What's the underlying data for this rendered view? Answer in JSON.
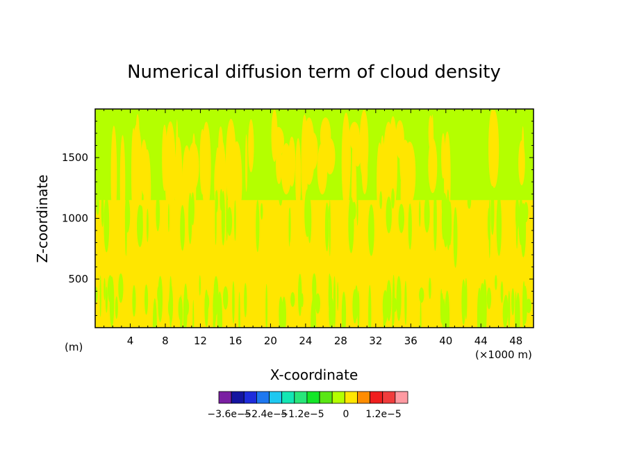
{
  "chart_data": {
    "type": "heatmap",
    "title": "Numerical diffusion term of cloud density",
    "xlabel": "X-coordinate",
    "ylabel": "Z-coordinate",
    "x_unit_label": "(×1000 m)",
    "y_unit_label": "(m)",
    "xlim": [
      0,
      50
    ],
    "ylim": [
      100,
      1900
    ],
    "x_ticks": [
      4,
      8,
      12,
      16,
      20,
      24,
      28,
      32,
      36,
      40,
      44,
      48
    ],
    "y_ticks": [
      500,
      1000,
      1500
    ],
    "x_tick_labels": [
      "4",
      "8",
      "12",
      "16",
      "20",
      "24",
      "28",
      "32",
      "36",
      "40",
      "44",
      "48"
    ],
    "y_tick_labels": [
      "500",
      "1000",
      "1500"
    ],
    "colorbar": {
      "colors": [
        "#7a1fa2",
        "#1414a0",
        "#1e2cdc",
        "#1e78f0",
        "#1ec8f0",
        "#14e6b4",
        "#28e67a",
        "#14e628",
        "#5ae614",
        "#b4ff00",
        "#ffe600",
        "#ff8c00",
        "#f01e1e",
        "#f03c3c",
        "#ff9aa2"
      ],
      "tick_labels": [
        "−3.6e−5",
        "−2.4e−5",
        "−1.2e−5",
        "0",
        "1.2e−5"
      ]
    },
    "field_colors": {
      "background": "#ffe600",
      "patch": "#b4ff00"
    },
    "field_description_regions": [
      {
        "x_range": [
          0,
          50
        ],
        "z_range": [
          1100,
          1900
        ],
        "dominant": "patch"
      },
      {
        "x_range": [
          0,
          50
        ],
        "z_range": [
          600,
          1100
        ],
        "dominant": "background"
      },
      {
        "x_range": [
          0,
          50
        ],
        "z_range": [
          100,
          500
        ],
        "dominant": "mixed"
      }
    ]
  }
}
